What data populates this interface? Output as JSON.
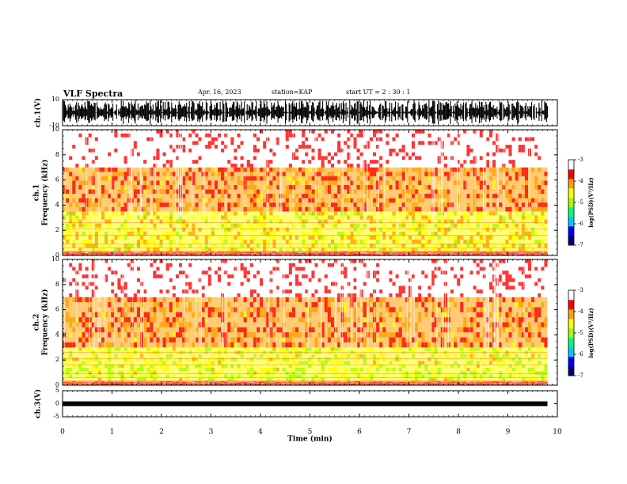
{
  "header": {
    "title": "VLF Spectra",
    "date": "Apr. 16, 2023",
    "station": "station=KAP",
    "start_time": "start UT =  2 : 30 : 1"
  },
  "chart_data": [
    {
      "type": "line",
      "ylabel": "ch.1(V)",
      "ylim": [
        -10,
        10
      ],
      "yticks": [
        10,
        -10
      ],
      "xlim": [
        0,
        10
      ],
      "description_data": {
        "signal": "dense noise waveform spanning approximately -10 to 10 V, ending near 9.8 min"
      },
      "color": "#000000"
    },
    {
      "type": "heatmap",
      "ylabel": "ch.1\nFrequency (kHz)",
      "ylim": [
        0,
        10
      ],
      "yticks": [
        0,
        2,
        4,
        6,
        8,
        10
      ],
      "xlim": [
        0,
        10
      ],
      "data_end_x": 9.8,
      "bands": [
        {
          "y": [
            0,
            0.3
          ],
          "level": -3.6
        },
        {
          "y": [
            0.3,
            3.5
          ],
          "level": -4.4
        },
        {
          "y": [
            3.5,
            7
          ],
          "level": -3.8
        },
        {
          "y": [
            7,
            10
          ],
          "level": -3.2
        }
      ],
      "colorbar": {
        "label": "log(PSD)(V²/Hz)",
        "range": [
          -7,
          -3
        ],
        "ticks": [
          -3,
          -4,
          -5,
          -6,
          -7
        ]
      }
    },
    {
      "type": "heatmap",
      "ylabel": "ch.2\nFrequency (kHz)",
      "ylim": [
        0,
        10
      ],
      "yticks": [
        0,
        2,
        4,
        6,
        8,
        10
      ],
      "xlim": [
        0,
        10
      ],
      "data_end_x": 9.8,
      "bands": [
        {
          "y": [
            0,
            0.3
          ],
          "level": -3.6
        },
        {
          "y": [
            0.3,
            3
          ],
          "level": -4.7
        },
        {
          "y": [
            3,
            7
          ],
          "level": -3.8
        },
        {
          "y": [
            7,
            10
          ],
          "level": -3.2
        }
      ],
      "colorbar": {
        "label": "log(PSD)(V²/Hz)",
        "range": [
          -7,
          -3
        ],
        "ticks": [
          -3,
          -4,
          -5,
          -6,
          -7
        ]
      }
    },
    {
      "type": "line",
      "ylabel": "ch.3(V)",
      "ylim": [
        -5,
        5
      ],
      "yticks": [
        5,
        0,
        -5
      ],
      "xlim": [
        0,
        10
      ],
      "description_data": {
        "signal": "narrow band near 0 V, ending near 9.8 min"
      },
      "color": "#000000"
    }
  ],
  "xaxis": {
    "label": "Time (min)",
    "ticks": [
      0,
      1,
      2,
      3,
      4,
      5,
      6,
      7,
      8,
      9,
      10
    ]
  },
  "colors": {
    "colormap": [
      "#00007a",
      "#0000ff",
      "#00c8ff",
      "#00ff78",
      "#a0ff00",
      "#ffff00",
      "#ffa000",
      "#ff0000",
      "#ffffff"
    ]
  }
}
